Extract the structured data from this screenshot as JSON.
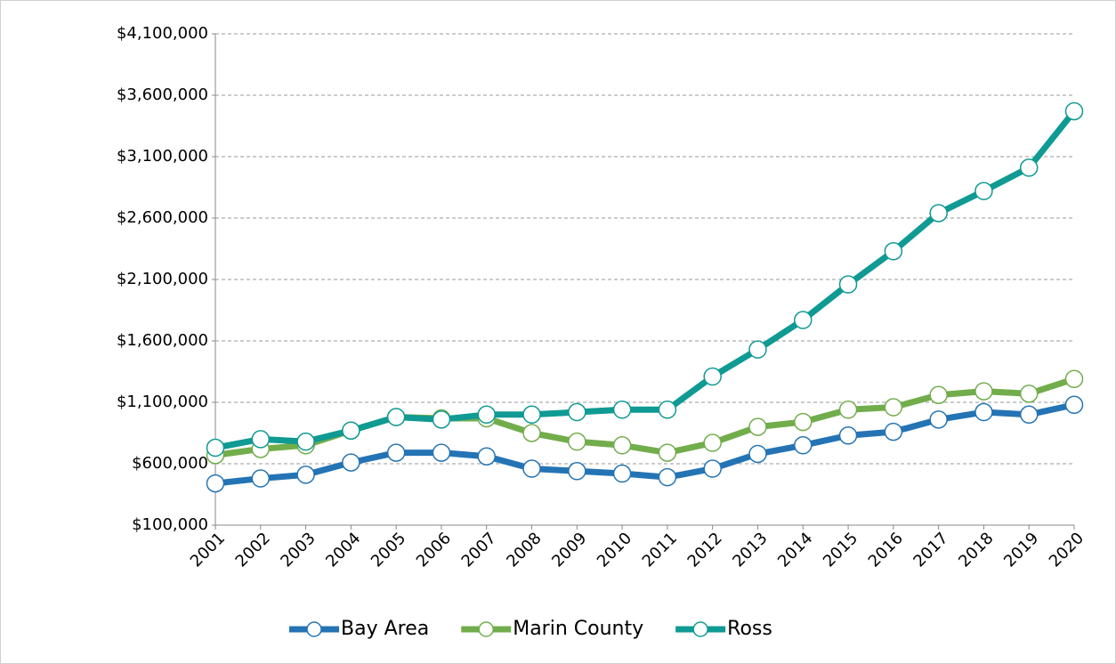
{
  "chart_data": {
    "type": "line",
    "categories": [
      "2001",
      "2002",
      "2003",
      "2004",
      "2005",
      "2006",
      "2007",
      "2008",
      "2009",
      "2010",
      "2011",
      "2012",
      "2013",
      "2014",
      "2015",
      "2016",
      "2017",
      "2018",
      "2019",
      "2020"
    ],
    "series": [
      {
        "name": "Bay Area",
        "color": "#2474b5",
        "values": [
          440000,
          480000,
          510000,
          610000,
          690000,
          690000,
          660000,
          560000,
          540000,
          520000,
          490000,
          560000,
          680000,
          750000,
          830000,
          860000,
          960000,
          1020000,
          1000000,
          1080000
        ]
      },
      {
        "name": "Marin County",
        "color": "#72ad4c",
        "values": [
          670000,
          720000,
          750000,
          870000,
          980000,
          970000,
          970000,
          850000,
          780000,
          750000,
          690000,
          770000,
          900000,
          940000,
          1040000,
          1060000,
          1160000,
          1190000,
          1170000,
          1290000
        ]
      },
      {
        "name": "Ross",
        "color": "#0f9a93",
        "values": [
          730000,
          800000,
          780000,
          870000,
          980000,
          960000,
          1000000,
          1000000,
          1020000,
          1040000,
          1040000,
          1310000,
          1530000,
          1770000,
          2060000,
          2330000,
          2640000,
          2820000,
          3010000,
          3470000
        ]
      }
    ],
    "ylim": [
      100000,
      4100000
    ],
    "yticks": [
      {
        "value": 100000,
        "label": "$100,000"
      },
      {
        "value": 600000,
        "label": "$600,000"
      },
      {
        "value": 1100000,
        "label": "$1,100,000"
      },
      {
        "value": 1600000,
        "label": "$1,600,000"
      },
      {
        "value": 2100000,
        "label": "$2,100,000"
      },
      {
        "value": 2600000,
        "label": "$2,600,000"
      },
      {
        "value": 3100000,
        "label": "$3,100,000"
      },
      {
        "value": 3600000,
        "label": "$3,600,000"
      },
      {
        "value": 4100000,
        "label": "$4,100,000"
      }
    ],
    "grid": true,
    "legend": "bottom"
  }
}
